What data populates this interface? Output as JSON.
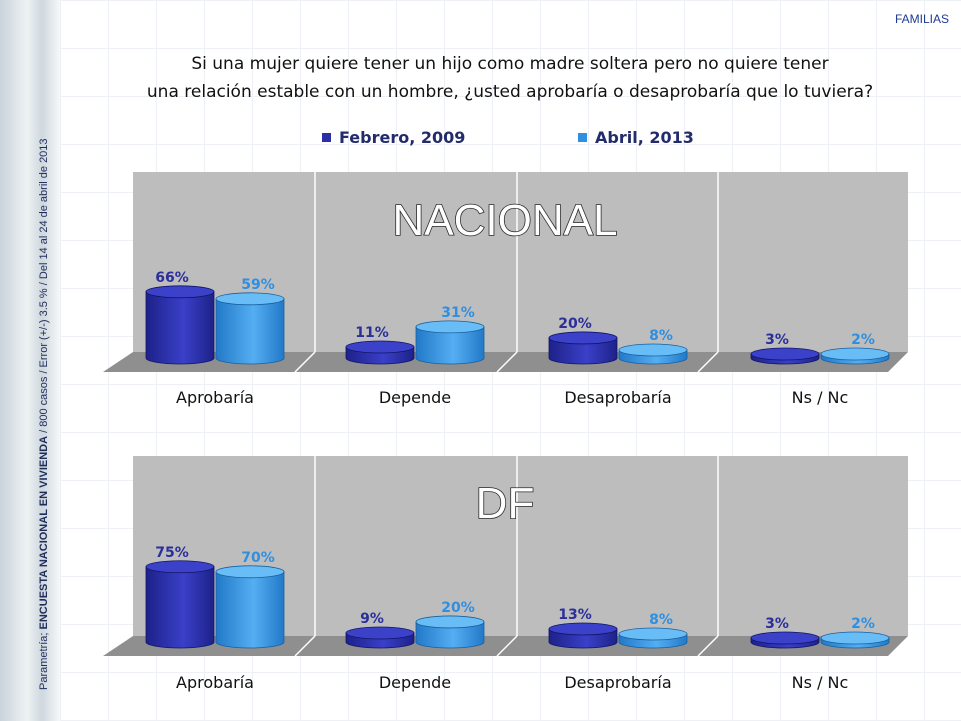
{
  "header": {
    "section": "FAMILIAS",
    "question_line1": "Si una mujer quiere tener un hijo como madre soltera pero no quiere tener",
    "question_line2": "una relación estable con un hombre, ¿usted aprobaría o desaprobaría que lo tuviera?",
    "side_prefix": "Parametría; ",
    "side_bold": "ENCUESTA NACIONAL EN VIVIENDA",
    "side_suffix": " / 800 casos / Error (+/-) 3.5 % / Del 14 al 24  de abril de 2013"
  },
  "colors": {
    "series1": "#2a2fa8",
    "series2": "#2f8fe0",
    "series1_label": "#2a2f9a",
    "series2_label": "#2f8fe0",
    "panel_bg": "#bdbdbd",
    "floor": "#8f8f8f"
  },
  "chart_data": [
    {
      "type": "bar",
      "title": "NACIONAL",
      "categories": [
        "Aprobaría",
        "Depende",
        "Desaprobaría",
        "Ns / Nc"
      ],
      "series": [
        {
          "name": "Febrero, 2009",
          "values": [
            66,
            11,
            20,
            3
          ],
          "labels": [
            "66%",
            "11%",
            "20%",
            "3%"
          ]
        },
        {
          "name": "Abril, 2013",
          "values": [
            59,
            31,
            8,
            2
          ],
          "labels": [
            "59%",
            "31%",
            "8%",
            "2%"
          ]
        }
      ],
      "ylim": [
        0,
        100
      ],
      "legend": "top"
    },
    {
      "type": "bar",
      "title": "DF",
      "categories": [
        "Aprobaría",
        "Depende",
        "Desaprobaría",
        "Ns / Nc"
      ],
      "series": [
        {
          "name": "Febrero, 2009",
          "values": [
            75,
            9,
            13,
            3
          ],
          "labels": [
            "75%",
            "9%",
            "13%",
            "3%"
          ]
        },
        {
          "name": "Abril, 2013",
          "values": [
            70,
            20,
            8,
            2
          ],
          "labels": [
            "70%",
            "20%",
            "8%",
            "2%"
          ]
        }
      ],
      "ylim": [
        0,
        100
      ],
      "legend": "top"
    }
  ]
}
